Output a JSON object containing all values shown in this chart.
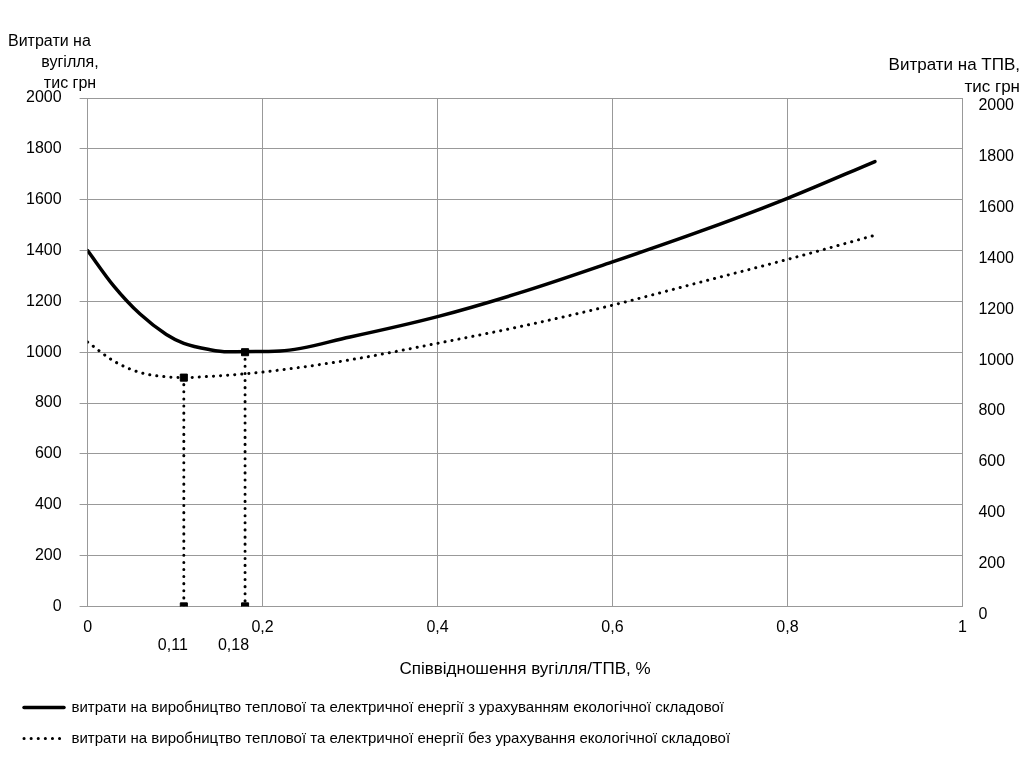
{
  "chart_data": {
    "type": "line",
    "xlabel": "Співвідношення вугілля/ТПВ, %",
    "ylabel": "Витрати на вугілля, тис грн",
    "y2label": "Витрати на ТПВ, тис грн",
    "xlim": [
      0,
      1
    ],
    "xticks": [
      0,
      {
        "value": 0.2,
        "label": "0,2"
      },
      {
        "value": 0.4,
        "label": "0,4"
      },
      {
        "value": 0.6,
        "label": "0,6"
      },
      {
        "value": 0.8,
        "label": "0,8"
      },
      1
    ],
    "ylim": [
      0,
      2000
    ],
    "yticks": [
      0,
      200,
      400,
      600,
      800,
      1000,
      1200,
      1400,
      1600,
      1800,
      2000
    ],
    "y2lim": [
      0,
      2000
    ],
    "y2ticks": [
      0,
      200,
      400,
      600,
      800,
      1000,
      1200,
      1400,
      1600,
      1800,
      2000
    ],
    "grid": true,
    "legend": "bottom",
    "series": [
      {
        "name": "витрати на виробництво теплової та електричної енергії з урахуванням екологічної складової",
        "color": "#000000",
        "line_style": "solid",
        "marker": "none",
        "x": [
          0,
          0.03,
          0.06,
          0.09,
          0.11,
          0.14,
          0.16,
          0.22,
          0.3,
          0.4,
          0.5,
          0.6,
          0.7,
          0.8,
          0.9
        ],
        "values": [
          1400,
          1260,
          1150,
          1070,
          1035,
          1010,
          1002,
          1005,
          1060,
          1140,
          1240,
          1355,
          1475,
          1605,
          1750
        ]
      },
      {
        "name": "витрати на виробництво теплової та електричної енергії без урахування екологічної складової",
        "color": "#000000",
        "line_style": "dotted",
        "marker": "none",
        "x": [
          0,
          0.03,
          0.06,
          0.09,
          0.11,
          0.14,
          0.18,
          0.22,
          0.3,
          0.4,
          0.5,
          0.6,
          0.7,
          0.8,
          0.9
        ],
        "values": [
          1040,
          965,
          920,
          903,
          900,
          905,
          915,
          930,
          970,
          1035,
          1105,
          1185,
          1275,
          1365,
          1460
        ]
      },
      {
        "color": "#000000",
        "line_style": "dotted",
        "marker": "square",
        "x": [
          0.11,
          0.11
        ],
        "values": [
          900,
          0
        ]
      },
      {
        "color": "#000000",
        "line_style": "dotted",
        "marker": "square",
        "x": [
          0.18,
          0.18
        ],
        "values": [
          1000,
          0
        ]
      }
    ],
    "annotations": [
      {
        "text": "0,11",
        "x": 0.11,
        "y": 0
      },
      {
        "text": "0,18",
        "x": 0.18,
        "y": 0
      }
    ]
  }
}
